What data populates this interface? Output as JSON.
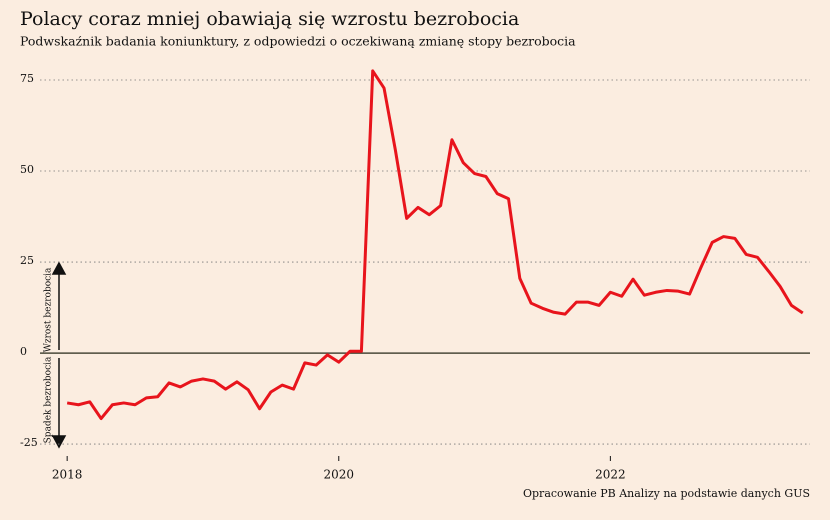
{
  "chart_data": {
    "type": "line",
    "title": "Polacy coraz mniej obawiają się wzrostu bezrobocia",
    "subtitle": "Podwskaźnik badania koniunktury, z odpowiedzi o oczekiwaną zmianę stopy bezrobocia",
    "source": "Opracowanie PB Analizy na podstawie danych GUS",
    "annotations": [
      "Wzrost bezrobocia",
      "Spadek bezrobocia"
    ],
    "x": [
      2018,
      2018.0833,
      2018.1667,
      2018.25,
      2018.3333,
      2018.4167,
      2018.5,
      2018.5833,
      2018.6667,
      2018.75,
      2018.8333,
      2018.9167,
      2019,
      2019.0833,
      2019.1667,
      2019.25,
      2019.3333,
      2019.4167,
      2019.5,
      2019.5833,
      2019.6667,
      2019.75,
      2019.8333,
      2019.9167,
      2020,
      2020.0833,
      2020.1667,
      2020.25,
      2020.3333,
      2020.4167,
      2020.5,
      2020.5833,
      2020.6667,
      2020.75,
      2020.8333,
      2020.9167,
      2021,
      2021.0833,
      2021.1667,
      2021.25,
      2021.3333,
      2021.4167,
      2021.5,
      2021.5833,
      2021.6667,
      2021.75,
      2021.8333,
      2021.9167,
      2022,
      2022.0833,
      2022.1667,
      2022.25,
      2022.3333,
      2022.4167,
      2022.5,
      2022.5833,
      2022.6667,
      2022.75,
      2022.8333,
      2022.9167,
      2023,
      2023.0833,
      2023.1667,
      2023.25,
      2023.3333,
      2023.4167
    ],
    "series": [
      {
        "name": "Podwskaźnik",
        "color": "#e8141c",
        "values": [
          -13.7,
          -14.2,
          -13.4,
          -18,
          -14.2,
          -13.7,
          -14.2,
          -12.3,
          -12,
          -8.2,
          -9.3,
          -7.7,
          -7.1,
          -7.7,
          -9.9,
          -7.9,
          -10.1,
          -15.3,
          -10.7,
          -8.8,
          -9.9,
          -2.7,
          -3.3,
          -0.5,
          -2.5,
          0.5,
          0.5,
          77.5,
          72.8,
          55.8,
          37,
          40,
          38,
          40.5,
          58.6,
          52.3,
          49.3,
          48.5,
          43.8,
          42.4,
          20.5,
          13.7,
          12.3,
          11.2,
          10.7,
          14,
          14,
          13.1,
          16.7,
          15.6,
          20.3,
          15.9,
          16.7,
          17.2,
          17,
          16.2,
          23.5,
          30.4,
          32,
          31.5,
          27.1,
          26.3,
          22.4,
          18.3,
          13.1,
          11
        ]
      }
    ],
    "xlim": [
      2017.8,
      2023.47
    ],
    "xticks": [
      2018,
      2020,
      2022
    ],
    "ylim": [
      -28,
      80.5
    ],
    "yticks": [
      -25,
      0,
      25,
      50,
      75
    ],
    "grid": true
  }
}
